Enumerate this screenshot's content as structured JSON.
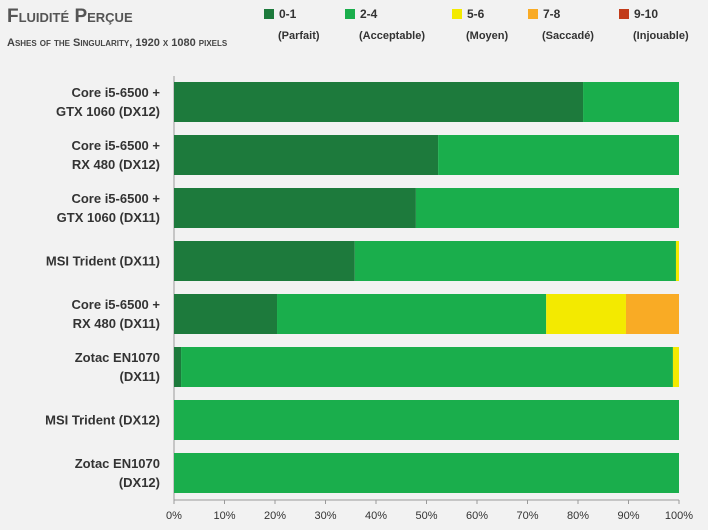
{
  "chart_data": {
    "type": "stacked-bar-horizontal",
    "title": "Fluidité Perçue",
    "subtitle": "Ashes of the Singularity, 1920 x 1080 pixels",
    "categories": [
      "Core i5-6500 +\nGTX 1060 (DX12)",
      "Core i5-6500 +\nRX 480 (DX12)",
      "Core i5-6500 +\nGTX 1060 (DX11)",
      "MSI Trident (DX11)",
      "Core i5-6500 +\nRX 480 (DX11)",
      "Zotac EN1070\n(DX11)",
      "MSI Trident (DX12)",
      "Zotac EN1070\n(DX12)"
    ],
    "series": [
      {
        "name": "0-1",
        "description": "(Parfait)",
        "color": "#1d7a3c",
        "values": [
          81.0,
          52.3,
          47.9,
          35.8,
          20.4,
          1.4,
          0,
          0
        ]
      },
      {
        "name": "2-4",
        "description": "(Acceptable)",
        "color": "#1aae4c",
        "values": [
          19.0,
          47.7,
          52.1,
          63.6,
          53.3,
          97.4,
          100,
          100
        ]
      },
      {
        "name": "5-6",
        "description": "(Moyen)",
        "color": "#f3ea00",
        "values": [
          0,
          0,
          0,
          0.6,
          15.8,
          1.2,
          0,
          0
        ]
      },
      {
        "name": "7-8",
        "description": "(Saccadé)",
        "color": "#f9ab25",
        "values": [
          0,
          0,
          0,
          0,
          10.5,
          0,
          0,
          0
        ]
      },
      {
        "name": "9-10",
        "description": "(Injouable)",
        "color": "#c23b1a",
        "values": [
          0,
          0,
          0,
          0,
          0,
          0,
          0,
          0
        ]
      }
    ],
    "xlim": [
      0,
      100
    ],
    "xticks": [
      {
        "value": 0,
        "label": "0%"
      },
      {
        "value": 10,
        "label": "10%"
      },
      {
        "value": 20,
        "label": "20%"
      },
      {
        "value": 30,
        "label": "30%"
      },
      {
        "value": 40,
        "label": "40%"
      },
      {
        "value": 50,
        "label": "50%"
      },
      {
        "value": 60,
        "label": "60%"
      },
      {
        "value": 70,
        "label": "70%"
      },
      {
        "value": 80,
        "label": "80%"
      },
      {
        "value": 90,
        "label": "90%"
      },
      {
        "value": 100,
        "label": "100%"
      }
    ]
  }
}
